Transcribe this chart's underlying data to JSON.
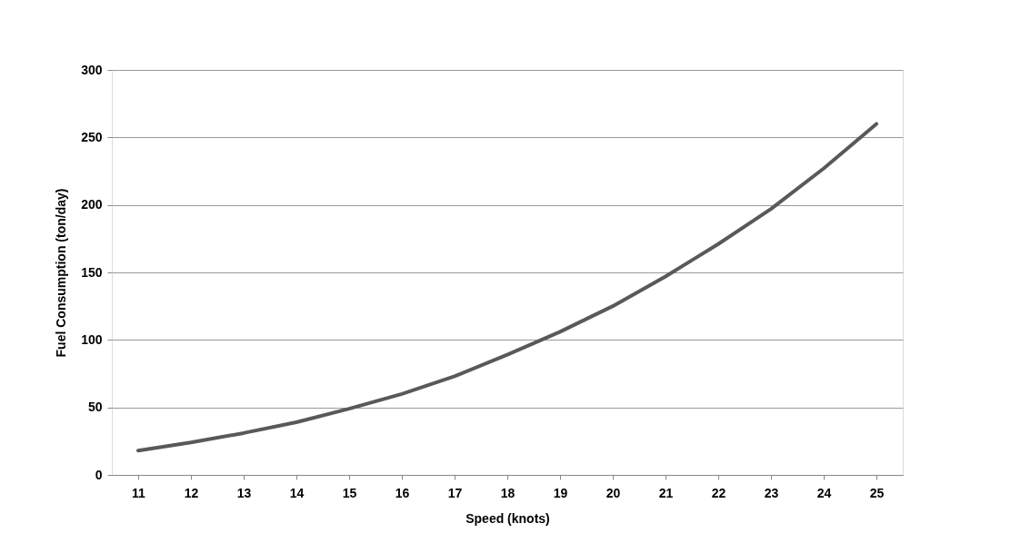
{
  "chart_data": {
    "type": "line",
    "xlabel": "Speed (knots)",
    "ylabel": "Fuel Consumption (ton/day)",
    "categories": [
      "11",
      "12",
      "13",
      "14",
      "15",
      "16",
      "17",
      "18",
      "19",
      "20",
      "21",
      "22",
      "23",
      "24",
      "25"
    ],
    "series": [
      {
        "color": "#595959",
        "values": [
          18,
          24,
          31,
          39,
          49,
          60,
          73,
          89,
          106,
          125,
          147,
          171,
          197,
          227,
          260
        ]
      }
    ],
    "ylim": [
      0,
      300
    ],
    "yticks": [
      0,
      50,
      100,
      150,
      200,
      250,
      300
    ],
    "grid": "y",
    "marker": "none",
    "line_style": "solid"
  }
}
